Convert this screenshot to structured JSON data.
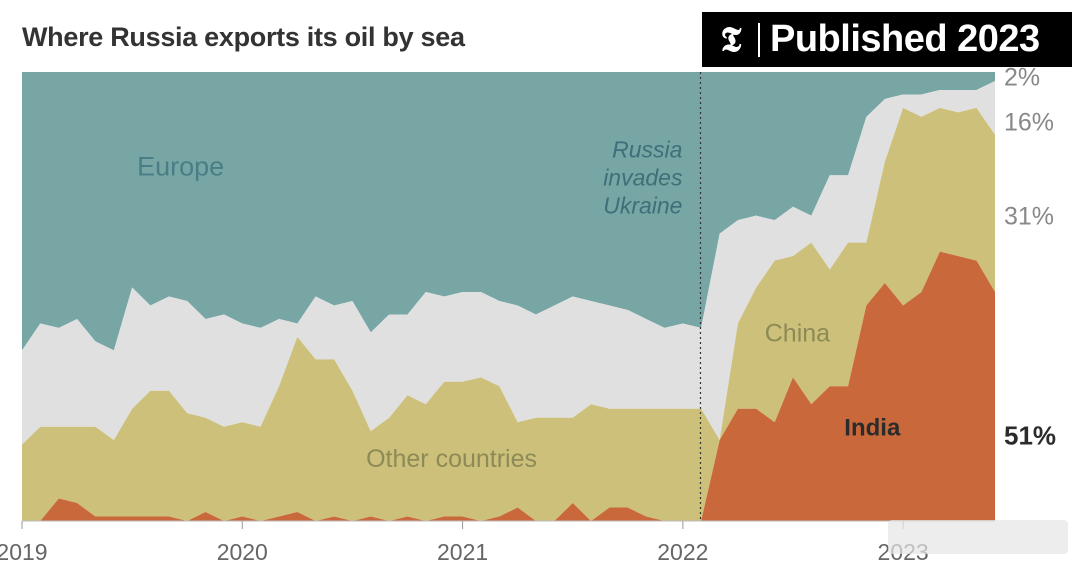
{
  "header": {
    "title": "Where Russia exports its oil by sea",
    "badge_text": "Published 2023",
    "badge_logo": "𝕿"
  },
  "colors": {
    "europe": "#77a6a5",
    "other": "#e0e0e0",
    "china": "#cdc07a",
    "india": "#c9683a",
    "annotation": "#3f6f78",
    "axis_text": "#666666",
    "pct_text": "#888888"
  },
  "chart_data": {
    "type": "area",
    "stacked": "percent",
    "title": "Where Russia exports its oil by sea",
    "x": [
      2019.0,
      2019.083,
      2019.167,
      2019.25,
      2019.333,
      2019.417,
      2019.5,
      2019.583,
      2019.667,
      2019.75,
      2019.833,
      2019.917,
      2020.0,
      2020.083,
      2020.167,
      2020.25,
      2020.333,
      2020.417,
      2020.5,
      2020.583,
      2020.667,
      2020.75,
      2020.833,
      2020.917,
      2021.0,
      2021.083,
      2021.167,
      2021.25,
      2021.333,
      2021.417,
      2021.5,
      2021.583,
      2021.667,
      2021.75,
      2021.833,
      2021.917,
      2022.0,
      2022.083,
      2022.167,
      2022.25,
      2022.333,
      2022.417,
      2022.5,
      2022.583,
      2022.667,
      2022.75,
      2022.833,
      2022.917,
      2023.0,
      2023.083,
      2023.167,
      2023.25,
      2023.333,
      2023.417
    ],
    "series": [
      {
        "name": "India",
        "cumulative_top": [
          0,
          0,
          5,
          4,
          1,
          1,
          1,
          1,
          1,
          0,
          2,
          0,
          1,
          0,
          1,
          2,
          0,
          1,
          0,
          1,
          0,
          1,
          0,
          1,
          1,
          0,
          1,
          3,
          0,
          0,
          4,
          0,
          3,
          3,
          1,
          0,
          0,
          0,
          18,
          25,
          25,
          22,
          32,
          26,
          30,
          30,
          48,
          53,
          48,
          51,
          60,
          59,
          58,
          51
        ]
      },
      {
        "name": "China",
        "other_countries_top": [
          17,
          21,
          21,
          21,
          21,
          18,
          25,
          29,
          29,
          24,
          23,
          21,
          22,
          21,
          30,
          41,
          36,
          36,
          29,
          20,
          23,
          28,
          26,
          31,
          31,
          32,
          30,
          22,
          23,
          23,
          23,
          26,
          25,
          25,
          25,
          25,
          25,
          25
        ]
      },
      {
        "name": "Other countries"
      },
      {
        "name": "Europe"
      }
    ],
    "china_top_from_2022": [
      0.0,
      0.0,
      44,
      52,
      58,
      59,
      62,
      56,
      62,
      62,
      80,
      92,
      90,
      92,
      91,
      92,
      86
    ],
    "other_top": [
      38,
      44,
      43,
      45,
      40,
      38,
      52,
      48,
      50,
      49,
      45,
      46,
      44,
      43,
      45,
      44,
      50,
      48,
      49,
      42,
      46,
      46,
      51,
      50,
      51,
      51,
      49,
      48,
      46,
      48,
      50,
      49,
      48,
      47,
      45,
      43,
      44,
      43,
      64,
      67,
      68,
      67,
      70,
      68,
      77,
      77,
      90,
      94,
      95,
      95,
      96,
      96,
      96,
      98
    ],
    "final_shares": [
      {
        "label": "2%",
        "value": 2
      },
      {
        "label": "16%",
        "value": 16
      },
      {
        "label": "31%",
        "value": 31
      },
      {
        "label": "51%",
        "value": 51
      }
    ],
    "area_labels": [
      {
        "text": "Europe"
      },
      {
        "text": "Other countries"
      },
      {
        "text": "China"
      },
      {
        "text": "India"
      }
    ],
    "annotation": {
      "lines": [
        "Russia",
        "invades",
        "Ukraine"
      ],
      "x": 2022.08
    },
    "x_ticks": [
      {
        "value": 2019,
        "label": "2019"
      },
      {
        "value": 2020,
        "label": "2020"
      },
      {
        "value": 2021,
        "label": "2021"
      },
      {
        "value": 2022,
        "label": "2022"
      },
      {
        "value": 2023,
        "label": "2023"
      }
    ],
    "xlim": [
      2019.0,
      2023.417
    ],
    "ylim": [
      0,
      100
    ],
    "grid": false
  }
}
